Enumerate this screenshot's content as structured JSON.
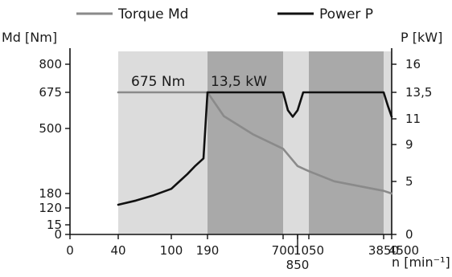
{
  "chart_data": {
    "type": "line",
    "legend_position": "top",
    "series": [
      {
        "name": "Torque Md",
        "axis": "left",
        "color": "#8a8a8a",
        "points": [
          [
            40,
            675
          ],
          [
            190,
            675
          ],
          [
            300,
            560
          ],
          [
            500,
            470
          ],
          [
            700,
            400
          ],
          [
            850,
            315
          ],
          [
            1050,
            290
          ],
          [
            2000,
            240
          ],
          [
            3850,
            193
          ],
          [
            4500,
            180
          ]
        ]
      },
      {
        "name": "Power P",
        "axis": "right",
        "color": "#111111",
        "points": [
          [
            40,
            2.8
          ],
          [
            60,
            3.2
          ],
          [
            80,
            3.7
          ],
          [
            100,
            4.3
          ],
          [
            120,
            5.0
          ],
          [
            140,
            5.8
          ],
          [
            160,
            6.7
          ],
          [
            180,
            7.5
          ],
          [
            190,
            13.5
          ],
          [
            700,
            13.5
          ],
          [
            750,
            11.8
          ],
          [
            800,
            11.2
          ],
          [
            850,
            11.8
          ],
          [
            950,
            13.5
          ],
          [
            3850,
            13.5
          ],
          [
            4200,
            12.2
          ],
          [
            4500,
            11.2
          ]
        ]
      }
    ],
    "left_axis": {
      "label": "Md [Nm]",
      "ticks": [
        0,
        15,
        120,
        180,
        500,
        675,
        800
      ]
    },
    "right_axis": {
      "label": "P [kW]",
      "ticks": [
        "0",
        "5",
        "9",
        "11",
        "13,5",
        "16"
      ]
    },
    "x_axis": {
      "label": "n [min⁻¹]",
      "ticks": [
        "0",
        "40",
        "100",
        "190",
        "700",
        "850",
        "1050",
        "3850",
        "4500"
      ]
    },
    "annotations": [
      {
        "text": "675 Nm"
      },
      {
        "text": "13,5 kW"
      }
    ],
    "bands": [
      {
        "from": 40,
        "to": 190,
        "shade": "light"
      },
      {
        "from": 190,
        "to": 700,
        "shade": "dark"
      },
      {
        "from": 700,
        "to": 1050,
        "shade": "light"
      },
      {
        "from": 1050,
        "to": 3850,
        "shade": "dark"
      },
      {
        "from": 3850,
        "to": 4500,
        "shade": "light"
      }
    ],
    "colors": {
      "band_light": "#dcdcdc",
      "band_dark": "#a9a9a9"
    }
  }
}
